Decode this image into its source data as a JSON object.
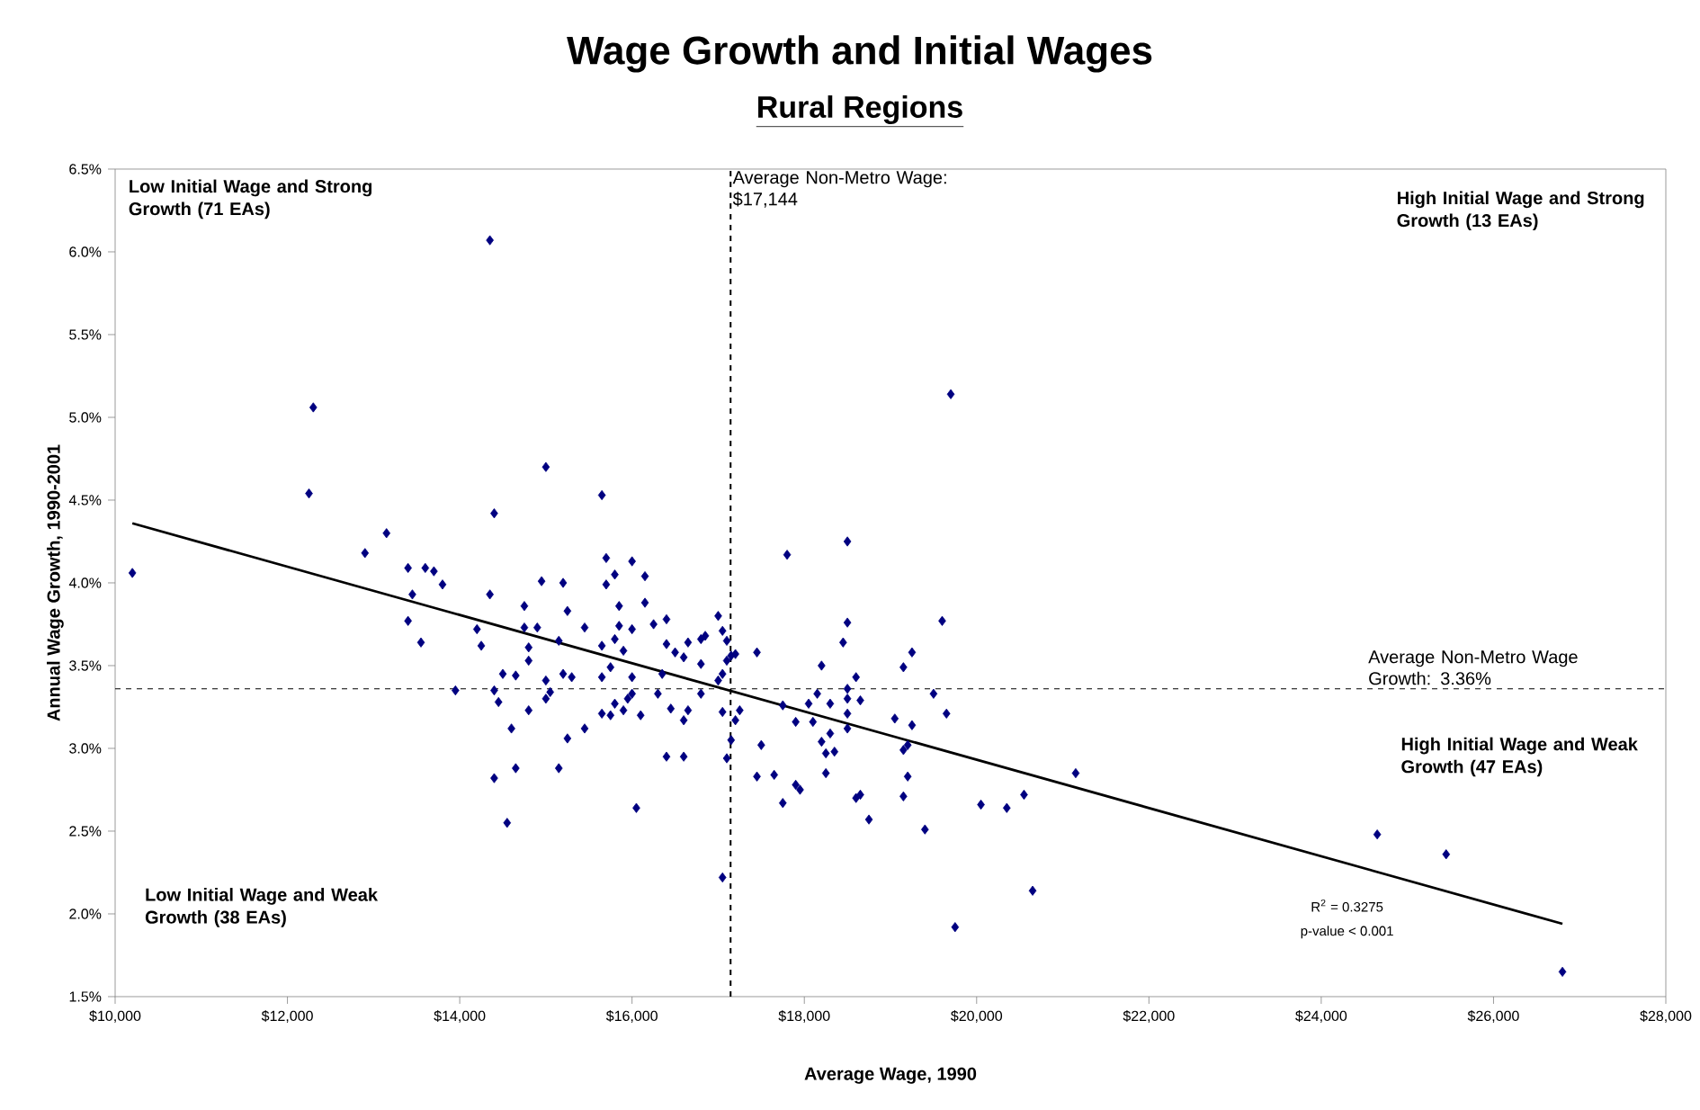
{
  "chart_data": {
    "type": "scatter",
    "title": "Wage Growth and Initial Wages",
    "subtitle": "Rural Regions",
    "xlabel": "Average Wage, 1990",
    "ylabel": "Annual Wage Growth, 1990-2001",
    "xlim": [
      10000,
      28000
    ],
    "ylim": [
      1.5,
      6.5
    ],
    "xticks": [
      {
        "value": 10000,
        "label": "$10,000"
      },
      {
        "value": 12000,
        "label": "$12,000"
      },
      {
        "value": 14000,
        "label": "$14,000"
      },
      {
        "value": 16000,
        "label": "$16,000"
      },
      {
        "value": 18000,
        "label": "$18,000"
      },
      {
        "value": 20000,
        "label": "$20,000"
      },
      {
        "value": 22000,
        "label": "$22,000"
      },
      {
        "value": 24000,
        "label": "$24,000"
      },
      {
        "value": 26000,
        "label": "$26,000"
      },
      {
        "value": 28000,
        "label": "$28,000"
      }
    ],
    "yticks": [
      {
        "value": 1.5,
        "label": "1.5%"
      },
      {
        "value": 2.0,
        "label": "2.0%"
      },
      {
        "value": 2.5,
        "label": "2.5%"
      },
      {
        "value": 3.0,
        "label": "3.0%"
      },
      {
        "value": 3.5,
        "label": "3.5%"
      },
      {
        "value": 4.0,
        "label": "4.0%"
      },
      {
        "value": 4.5,
        "label": "4.5%"
      },
      {
        "value": 5.0,
        "label": "5.0%"
      },
      {
        "value": 5.5,
        "label": "5.5%"
      },
      {
        "value": 6.0,
        "label": "6.0%"
      },
      {
        "value": 6.5,
        "label": "6.5%"
      }
    ],
    "marker": "diamond",
    "series": [
      {
        "color": "#000080",
        "x": [
          10200,
          14350,
          12300,
          12250,
          15000,
          15650,
          14400,
          13150,
          12900,
          13400,
          13600,
          13700,
          13800,
          13450,
          14350,
          14950,
          15200,
          15700,
          16000,
          15800,
          15700,
          14750,
          15250,
          15850,
          13400,
          13550,
          14200,
          14250,
          14750,
          14900,
          15150,
          15450,
          15650,
          15850,
          16000,
          14800,
          14800,
          15800,
          15900,
          14500,
          14650,
          15200,
          15300,
          15000,
          15650,
          15750,
          16000,
          13950,
          14400,
          15050,
          15000,
          14450,
          14800,
          15650,
          15750,
          15800,
          15900,
          16000,
          15950,
          14600,
          15250,
          15450,
          14400,
          14650,
          15150,
          14550,
          16050,
          19700,
          18500,
          17800,
          16150,
          16150,
          16250,
          16400,
          17000,
          17050,
          17100,
          16850,
          16800,
          16400,
          16650,
          16500,
          16600,
          16800,
          17150,
          17200,
          17100,
          17050,
          17000,
          16350,
          17450,
          16800,
          16300,
          16450,
          16650,
          16600,
          16100,
          17050,
          17200,
          17250,
          17150,
          17100,
          16400,
          16600,
          17050,
          18200,
          18500,
          18450,
          19600,
          19250,
          19150,
          18600,
          18500,
          18500,
          18300,
          18150,
          18050,
          18650,
          17750,
          17900,
          18100,
          18500,
          18500,
          19050,
          19250,
          19500,
          19650,
          17500,
          18300,
          18200,
          18250,
          18350,
          19200,
          19150,
          17450,
          17650,
          18250,
          17900,
          17950,
          17750,
          18600,
          18650,
          19200,
          19150,
          18750,
          19400,
          20050,
          20350,
          20550,
          21150,
          20650,
          19750,
          24650,
          25450,
          26800
        ],
        "values": [
          4.06,
          6.07,
          5.06,
          4.54,
          4.7,
          4.53,
          4.42,
          4.3,
          4.18,
          4.09,
          4.09,
          4.07,
          3.99,
          3.93,
          3.93,
          4.01,
          4.0,
          4.15,
          4.13,
          4.05,
          3.99,
          3.86,
          3.83,
          3.86,
          3.77,
          3.64,
          3.72,
          3.62,
          3.73,
          3.73,
          3.65,
          3.73,
          3.62,
          3.74,
          3.72,
          3.61,
          3.53,
          3.66,
          3.59,
          3.45,
          3.44,
          3.45,
          3.43,
          3.41,
          3.43,
          3.49,
          3.43,
          3.35,
          3.35,
          3.34,
          3.3,
          3.28,
          3.23,
          3.21,
          3.2,
          3.27,
          3.23,
          3.33,
          3.3,
          3.12,
          3.06,
          3.12,
          2.82,
          2.88,
          2.88,
          2.55,
          2.64,
          5.14,
          4.25,
          4.17,
          4.04,
          3.88,
          3.75,
          3.78,
          3.8,
          3.71,
          3.65,
          3.68,
          3.66,
          3.63,
          3.64,
          3.58,
          3.55,
          3.51,
          3.56,
          3.57,
          3.53,
          3.45,
          3.41,
          3.45,
          3.58,
          3.33,
          3.33,
          3.24,
          3.23,
          3.17,
          3.2,
          3.22,
          3.17,
          3.23,
          3.05,
          2.94,
          2.95,
          2.95,
          2.22,
          3.5,
          3.76,
          3.64,
          3.77,
          3.58,
          3.49,
          3.43,
          3.36,
          3.3,
          3.27,
          3.33,
          3.27,
          3.29,
          3.26,
          3.16,
          3.16,
          3.21,
          3.12,
          3.18,
          3.14,
          3.33,
          3.21,
          3.02,
          3.09,
          3.04,
          2.97,
          2.98,
          3.02,
          2.99,
          2.83,
          2.84,
          2.85,
          2.78,
          2.75,
          2.67,
          2.7,
          2.72,
          2.83,
          2.71,
          2.57,
          2.51,
          2.66,
          2.64,
          2.72,
          2.85,
          2.14,
          1.92,
          2.48,
          2.36,
          1.65
        ]
      },
      {
        "type": "line",
        "color": "#000000",
        "marker": "none",
        "x": [
          10200,
          26800
        ],
        "values": [
          4.36,
          1.94
        ]
      }
    ],
    "ref_lines": [
      {
        "axis": "x",
        "value": 17144,
        "label": "Average Non-Metro Wage: $17,144",
        "line_style": "dashed"
      },
      {
        "axis": "y",
        "value": 3.36,
        "label": "Average Non-Metro Wage Growth: 3.36%",
        "line_style": "dashed"
      }
    ],
    "annotations": [
      "Low Initial Wage and Strong Growth (71 EAs)",
      "High Initial Wage and Strong Growth (13 EAs)",
      "High Initial Wage and Weak Growth (47 EAs)",
      "Low Initial Wage and Weak Growth (38 EAs)",
      "R$^{2}$ = 0.3275",
      "p-value < 0.001"
    ]
  }
}
